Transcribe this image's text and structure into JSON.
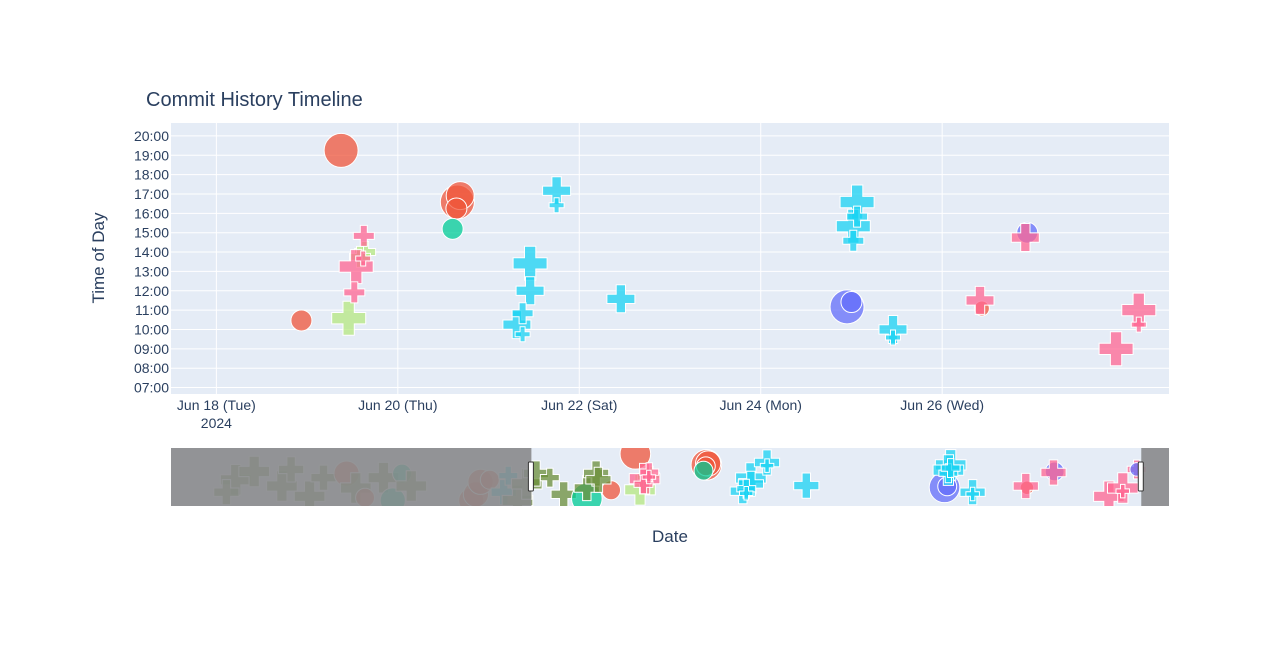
{
  "chart_data": {
    "type": "scatter",
    "title": "Commit History Timeline",
    "xlabel": "Date",
    "ylabel": "Time of Day",
    "x_axis": {
      "type": "date",
      "visible_range": [
        "2024-06-17T12:00",
        "2024-06-28T12:00"
      ],
      "tick_labels": [
        {
          "date": "2024-06-18",
          "label": "Jun 18 (Tue)",
          "sublabel": "2024"
        },
        {
          "date": "2024-06-20",
          "label": "Jun 20 (Thu)",
          "sublabel": ""
        },
        {
          "date": "2024-06-22",
          "label": "Jun 22 (Sat)",
          "sublabel": ""
        },
        {
          "date": "2024-06-24",
          "label": "Jun 24 (Mon)",
          "sublabel": ""
        },
        {
          "date": "2024-06-26",
          "label": "Jun 26 (Wed)",
          "sublabel": ""
        }
      ]
    },
    "y_axis": {
      "range": [
        "06:40",
        "20:40"
      ],
      "tick_labels": [
        "07:00",
        "08:00",
        "09:00",
        "10:00",
        "11:00",
        "12:00",
        "13:00",
        "14:00",
        "15:00",
        "16:00",
        "17:00",
        "18:00",
        "19:00",
        "20:00"
      ],
      "grid": true
    },
    "rangeslider": {
      "full_range": [
        "2024-06-11T00:00",
        "2024-06-29T00:00"
      ],
      "selected_range": [
        "2024-06-17T12:00",
        "2024-06-28T12:00"
      ],
      "y_range": [
        "06:40",
        "20:40"
      ]
    },
    "colors": {
      "plot_bg": "#e5ecf6",
      "grid": "#ffffff",
      "text": "#2a3f5f",
      "slider_mask": "#88898c",
      "red": "#ef553b",
      "blue": "#636efa",
      "green": "#00cc96",
      "cyan": "#19d3f3",
      "pink": "#ff6692",
      "lime": "#b6e880",
      "olive": "#6b8f3a"
    },
    "series": [
      {
        "color": "red",
        "symbol": "circle",
        "points": [
          {
            "x": "2024-06-18T22:30",
            "y": "10:28",
            "size": 2
          },
          {
            "x": "2024-06-19T09:00",
            "y": "19:15",
            "size": 4
          },
          {
            "x": "2024-06-20T15:45",
            "y": "16:35",
            "size": 4
          },
          {
            "x": "2024-06-20T16:30",
            "y": "16:55",
            "size": 3
          },
          {
            "x": "2024-06-20T15:30",
            "y": "16:15",
            "size": 2
          }
        ]
      },
      {
        "color": "green",
        "symbol": "circle",
        "points": [
          {
            "x": "2024-06-20T14:30",
            "y": "15:12",
            "size": 2
          }
        ]
      },
      {
        "color": "blue",
        "symbol": "circle",
        "points": [
          {
            "x": "2024-06-24T22:50",
            "y": "11:10",
            "size": 4
          },
          {
            "x": "2024-06-25T00:00",
            "y": "11:25",
            "size": 2
          },
          {
            "x": "2024-06-26T22:30",
            "y": "15:00",
            "size": 2
          }
        ]
      },
      {
        "color": "red",
        "symbol": "circle",
        "points": [
          {
            "x": "2024-06-26T10:30",
            "y": "11:05",
            "size": 1
          }
        ]
      },
      {
        "color": "lime",
        "symbol": "cross",
        "points": [
          {
            "x": "2024-06-19T11:00",
            "y": "10:35",
            "size": 4
          },
          {
            "x": "2024-06-19T15:20",
            "y": "14:00",
            "size": 2
          },
          {
            "x": "2024-06-19T14:00",
            "y": "13:45",
            "size": 2
          }
        ]
      },
      {
        "color": "pink",
        "symbol": "cross",
        "points": [
          {
            "x": "2024-06-19T13:00",
            "y": "13:15",
            "size": 4
          },
          {
            "x": "2024-06-19T12:30",
            "y": "11:55",
            "size": 2
          },
          {
            "x": "2024-06-19T15:00",
            "y": "14:50",
            "size": 2
          },
          {
            "x": "2024-06-19T14:50",
            "y": "13:40",
            "size": 1
          },
          {
            "x": "2024-06-26T10:00",
            "y": "11:30",
            "size": 3
          },
          {
            "x": "2024-06-26T22:00",
            "y": "14:45",
            "size": 3
          },
          {
            "x": "2024-06-27T22:00",
            "y": "09:00",
            "size": 4
          },
          {
            "x": "2024-06-28T04:00",
            "y": "11:00",
            "size": 4
          },
          {
            "x": "2024-06-28T04:00",
            "y": "10:15",
            "size": 1
          }
        ]
      },
      {
        "color": "cyan",
        "symbol": "cross",
        "points": [
          {
            "x": "2024-06-21T11:00",
            "y": "13:25",
            "size": 4
          },
          {
            "x": "2024-06-21T07:30",
            "y": "10:15",
            "size": 3
          },
          {
            "x": "2024-06-21T11:00",
            "y": "12:00",
            "size": 3
          },
          {
            "x": "2024-06-21T09:00",
            "y": "10:50",
            "size": 2
          },
          {
            "x": "2024-06-21T09:00",
            "y": "09:45",
            "size": 1
          },
          {
            "x": "2024-06-21T18:00",
            "y": "17:10",
            "size": 3
          },
          {
            "x": "2024-06-21T18:00",
            "y": "16:25",
            "size": 1
          },
          {
            "x": "2024-06-22T11:00",
            "y": "11:35",
            "size": 3
          },
          {
            "x": "2024-06-25T01:30",
            "y": "16:35",
            "size": 4
          },
          {
            "x": "2024-06-25T00:30",
            "y": "15:20",
            "size": 4
          },
          {
            "x": "2024-06-25T00:30",
            "y": "14:35",
            "size": 2
          },
          {
            "x": "2024-06-25T01:30",
            "y": "15:50",
            "size": 2
          },
          {
            "x": "2024-06-25T11:00",
            "y": "10:00",
            "size": 3
          },
          {
            "x": "2024-06-25T11:00",
            "y": "09:35",
            "size": 1
          }
        ]
      }
    ],
    "outside_points": [
      {
        "x": "2024-06-12T04:00",
        "y": "13:00",
        "symbol": "cross",
        "color": "olive",
        "size": 4
      },
      {
        "x": "2024-06-12T00:00",
        "y": "10:00",
        "symbol": "cross",
        "color": "olive",
        "size": 3
      },
      {
        "x": "2024-06-12T12:00",
        "y": "15:00",
        "symbol": "cross",
        "color": "olive",
        "size": 4
      },
      {
        "x": "2024-06-13T00:00",
        "y": "11:30",
        "symbol": "cross",
        "color": "olive",
        "size": 4
      },
      {
        "x": "2024-06-13T04:00",
        "y": "15:30",
        "symbol": "cross",
        "color": "olive",
        "size": 3
      },
      {
        "x": "2024-06-13T12:00",
        "y": "9:00",
        "symbol": "cross",
        "color": "olive",
        "size": 4
      },
      {
        "x": "2024-06-13T18:00",
        "y": "13:30",
        "symbol": "cross",
        "color": "olive",
        "size": 3
      },
      {
        "x": "2024-06-14T04:00",
        "y": "14:30",
        "symbol": "circle",
        "color": "red",
        "size": 3
      },
      {
        "x": "2024-06-14T08:00",
        "y": "11:00",
        "symbol": "cross",
        "color": "olive",
        "size": 4
      },
      {
        "x": "2024-06-14T12:00",
        "y": "8:40",
        "symbol": "circle",
        "color": "red",
        "size": 2
      },
      {
        "x": "2024-06-14T20:00",
        "y": "13:30",
        "symbol": "cross",
        "color": "olive",
        "size": 4
      },
      {
        "x": "2024-06-15T00:00",
        "y": "8:00",
        "symbol": "circle",
        "color": "green",
        "size": 3
      },
      {
        "x": "2024-06-15T04:00",
        "y": "14:30",
        "symbol": "circle",
        "color": "green",
        "size": 2
      },
      {
        "x": "2024-06-15T08:00",
        "y": "11:30",
        "symbol": "cross",
        "color": "olive",
        "size": 4
      },
      {
        "x": "2024-06-16T10:00",
        "y": "8:00",
        "symbol": "circle",
        "color": "red",
        "size": 3
      },
      {
        "x": "2024-06-16T12:00",
        "y": "9:30",
        "symbol": "circle",
        "color": "red",
        "size": 3
      },
      {
        "x": "2024-06-16T14:00",
        "y": "12:30",
        "symbol": "circle",
        "color": "red",
        "size": 3
      },
      {
        "x": "2024-06-16T18:00",
        "y": "13:00",
        "symbol": "circle",
        "color": "red",
        "size": 2
      },
      {
        "x": "2024-06-17T00:00",
        "y": "10:00",
        "symbol": "cross",
        "color": "cyan",
        "size": 3
      },
      {
        "x": "2024-06-17T02:00",
        "y": "14:00",
        "symbol": "cross",
        "color": "cyan",
        "size": 2
      },
      {
        "x": "2024-06-17T06:00",
        "y": "8:00",
        "symbol": "cross",
        "color": "olive",
        "size": 4
      },
      {
        "x": "2024-06-17T10:00",
        "y": "12:00",
        "symbol": "cross",
        "color": "olive",
        "size": 4
      },
      {
        "x": "2024-06-17T14:00",
        "y": "14:30",
        "symbol": "cross",
        "color": "olive",
        "size": 3
      },
      {
        "x": "2024-06-17T20:00",
        "y": "13:30",
        "symbol": "cross",
        "color": "olive",
        "size": 2
      },
      {
        "x": "2024-06-18T02:00",
        "y": "9:30",
        "symbol": "cross",
        "color": "olive",
        "size": 3
      },
      {
        "x": "2024-06-18T12:00",
        "y": "8:30",
        "symbol": "circle",
        "color": "green",
        "size": 4
      },
      {
        "x": "2024-06-18T12:00",
        "y": "11:00",
        "symbol": "cross",
        "color": "olive",
        "size": 3
      },
      {
        "x": "2024-06-18T16:00",
        "y": "14:30",
        "symbol": "cross",
        "color": "olive",
        "size": 3
      },
      {
        "x": "2024-06-18T17:00",
        "y": "13:00",
        "symbol": "cross",
        "color": "olive",
        "size": 3
      },
      {
        "x": "2024-06-28T10:00",
        "y": "15:30",
        "symbol": "cross",
        "color": "pink",
        "size": 2
      },
      {
        "x": "2024-06-28T10:00",
        "y": "15:30",
        "symbol": "circle",
        "color": "blue",
        "size": 1
      }
    ]
  }
}
